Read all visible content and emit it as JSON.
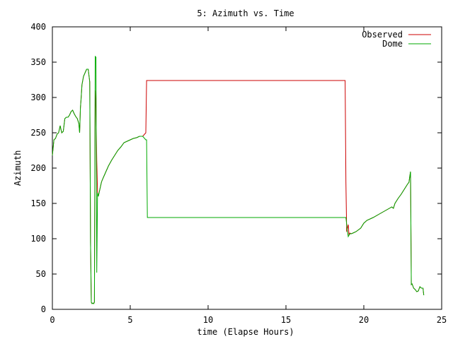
{
  "chart_data": {
    "type": "line",
    "title": "5: Azimuth vs. Time",
    "xlabel": "time (Elapse Hours)",
    "ylabel": "Azimuth",
    "xlim": [
      0,
      25
    ],
    "ylim": [
      0,
      400
    ],
    "xticks": [
      "0",
      "5",
      "10",
      "15",
      "20",
      "25"
    ],
    "yticks": [
      "0",
      "50",
      "100",
      "150",
      "200",
      "250",
      "300",
      "350",
      "400"
    ],
    "grid": false,
    "legend": "top-right",
    "series": [
      {
        "name": "Observed",
        "color": "#cc0000",
        "x": [
          0.0,
          0.1,
          0.2,
          0.3,
          0.4,
          0.5,
          0.6,
          0.7,
          0.8,
          0.9,
          1.0,
          1.1,
          1.2,
          1.3,
          1.4,
          1.5,
          1.6,
          1.7,
          1.75,
          1.8,
          1.85,
          1.9,
          2.0,
          2.1,
          2.2,
          2.3,
          2.4,
          2.45,
          2.5,
          2.55,
          2.6,
          2.65,
          2.7,
          2.75,
          2.8,
          2.85,
          2.9,
          2.95,
          3.0,
          3.05,
          3.1,
          3.15,
          3.2,
          3.3,
          3.4,
          3.6,
          3.8,
          4.0,
          4.2,
          4.4,
          4.6,
          4.8,
          5.0,
          5.2,
          5.4,
          5.6,
          5.8,
          6.0,
          6.05,
          6.1,
          6.2,
          6.3,
          10.0,
          15.0,
          18.8,
          18.85,
          18.9,
          18.95,
          19.0,
          19.05,
          19.1,
          19.2,
          19.3,
          19.5,
          19.8,
          20.0,
          20.2,
          20.6,
          21.0,
          21.4,
          21.8,
          21.9,
          22.0,
          22.2,
          22.4,
          22.6,
          22.8,
          22.9,
          22.95,
          23.0,
          23.05,
          23.1,
          23.2,
          23.3,
          23.4,
          23.5,
          23.6,
          23.7,
          23.8,
          23.85
        ],
        "y": [
          218,
          240,
          242,
          248,
          250,
          260,
          250,
          252,
          270,
          272,
          272,
          275,
          280,
          282,
          277,
          273,
          270,
          263,
          250,
          285,
          300,
          318,
          330,
          335,
          340,
          340,
          322,
          95,
          10,
          8,
          9,
          8,
          10,
          310,
          285,
          210,
          165,
          160,
          165,
          170,
          175,
          180,
          183,
          188,
          193,
          203,
          211,
          218,
          225,
          230,
          236,
          238,
          240,
          242,
          243,
          245,
          245,
          250,
          324,
          324,
          324,
          324,
          324,
          324,
          324,
          180,
          110,
          115,
          120,
          105,
          108,
          107,
          108,
          110,
          115,
          122,
          126,
          130,
          135,
          140,
          145,
          143,
          150,
          157,
          163,
          170,
          177,
          180,
          188,
          195,
          35,
          36,
          30,
          28,
          25,
          26,
          32,
          30,
          30,
          20
        ]
      },
      {
        "name": "Dome",
        "color": "#00aa00",
        "x": [
          0.0,
          0.1,
          0.2,
          0.3,
          0.4,
          0.5,
          0.6,
          0.7,
          0.8,
          0.9,
          1.0,
          1.1,
          1.2,
          1.3,
          1.4,
          1.5,
          1.6,
          1.7,
          1.75,
          1.8,
          1.85,
          1.9,
          2.0,
          2.1,
          2.2,
          2.3,
          2.4,
          2.45,
          2.5,
          2.55,
          2.6,
          2.65,
          2.7,
          2.75,
          2.8,
          2.85,
          2.9,
          2.95,
          3.0,
          3.05,
          3.1,
          3.15,
          3.2,
          3.3,
          3.4,
          3.6,
          3.8,
          4.0,
          4.2,
          4.4,
          4.6,
          4.8,
          5.0,
          5.2,
          5.4,
          5.6,
          5.8,
          6.0,
          6.05,
          6.1,
          6.2,
          6.3,
          10.0,
          15.0,
          18.8,
          18.85,
          18.9,
          18.95,
          19.0,
          19.05,
          19.1,
          19.2,
          19.3,
          19.5,
          19.8,
          20.0,
          20.2,
          20.6,
          21.0,
          21.4,
          21.8,
          21.9,
          22.0,
          22.2,
          22.4,
          22.6,
          22.8,
          22.9,
          22.95,
          23.0,
          23.05,
          23.1,
          23.2,
          23.3,
          23.4,
          23.5,
          23.6,
          23.7,
          23.8,
          23.85
        ],
        "y": [
          218,
          240,
          242,
          248,
          250,
          260,
          250,
          252,
          270,
          272,
          272,
          275,
          280,
          282,
          277,
          273,
          270,
          263,
          250,
          285,
          300,
          318,
          330,
          335,
          340,
          340,
          322,
          95,
          10,
          8,
          9,
          8,
          10,
          358,
          357,
          52,
          165,
          160,
          165,
          170,
          175,
          180,
          183,
          188,
          193,
          203,
          211,
          218,
          225,
          230,
          236,
          238,
          240,
          242,
          243,
          245,
          245,
          240,
          240,
          130,
          130,
          130,
          130,
          130,
          130,
          130,
          120,
          110,
          103,
          105,
          107,
          107,
          108,
          110,
          115,
          122,
          126,
          130,
          135,
          140,
          145,
          143,
          150,
          157,
          163,
          170,
          177,
          180,
          188,
          195,
          35,
          36,
          30,
          28,
          25,
          26,
          32,
          30,
          30,
          20
        ]
      }
    ]
  }
}
